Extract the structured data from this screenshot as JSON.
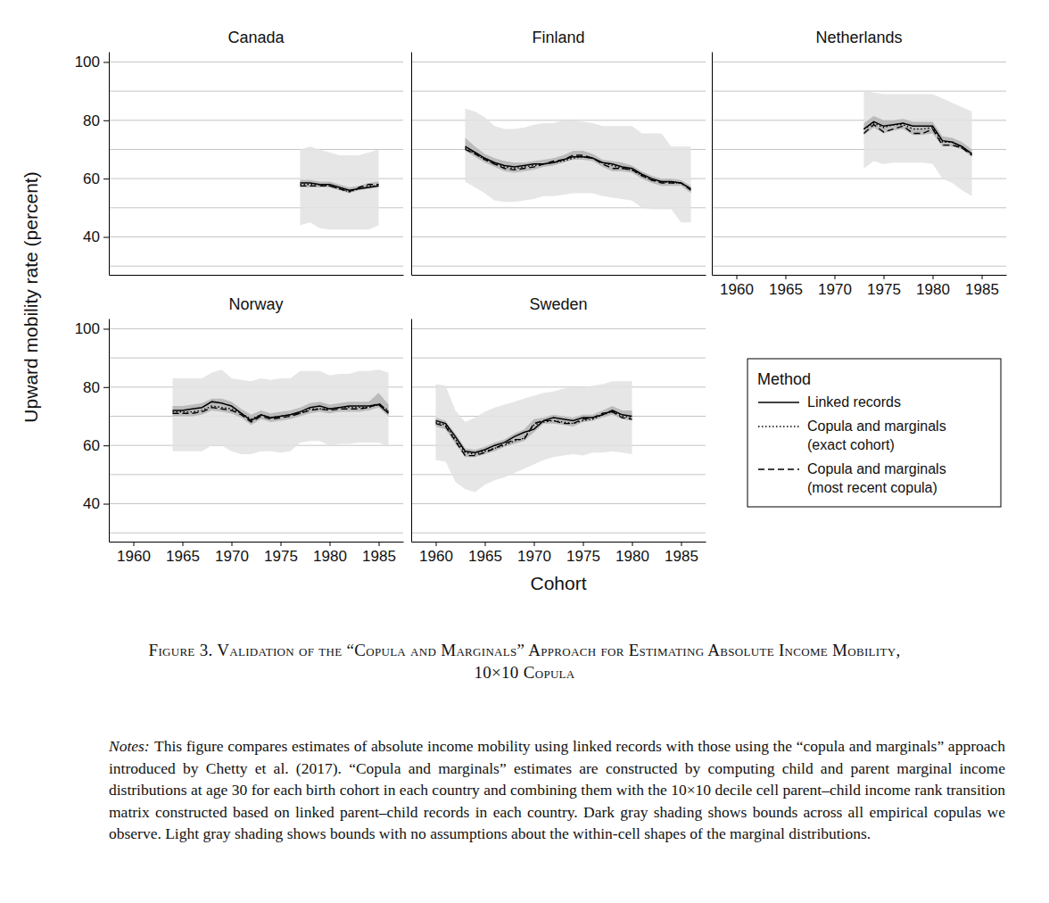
{
  "chart_data": [
    {
      "type": "line",
      "title": "Canada",
      "xlim": [
        1957.5,
        1987.5
      ],
      "ylim": [
        27,
        103.5
      ],
      "yticks": [
        40,
        60,
        80,
        100
      ],
      "minor_yticks": [
        30,
        50,
        70,
        90
      ],
      "xticks": [
        1960,
        1965,
        1970,
        1975,
        1980,
        1985
      ],
      "grid": true,
      "tick_labels": "y",
      "x": [
        1977,
        1978,
        1979,
        1980,
        1981,
        1982,
        1983,
        1984,
        1985
      ],
      "bands": [
        {
          "color": "#e2e2e2",
          "lower": [
            44,
            45,
            43,
            42.5,
            42.5,
            42.5,
            42.5,
            42.5,
            44
          ],
          "upper": [
            70,
            71,
            70,
            69,
            68,
            68,
            68,
            69,
            70
          ]
        },
        {
          "color": "#b3b3b3",
          "lower": [
            57,
            57,
            57,
            57,
            56,
            55,
            56,
            56.5,
            57
          ],
          "upper": [
            59.5,
            59.5,
            59,
            59,
            58,
            57,
            57.5,
            58.5,
            59
          ]
        }
      ],
      "series": [
        {
          "name": "Linked records",
          "color": "#000000",
          "line_style": "solid",
          "values": [
            58.5,
            58.5,
            58,
            58,
            57,
            56,
            56.5,
            57,
            57.5
          ]
        },
        {
          "name": "Copula and marginals (exact cohort)",
          "color": "#000000",
          "line_style": "dotted",
          "values": [
            58,
            58,
            58,
            57.5,
            56.5,
            55.5,
            56.5,
            57.5,
            57.5
          ]
        },
        {
          "name": "Copula and marginals (most recent copula)",
          "color": "#000000",
          "line_style": "dashed",
          "values": [
            57.5,
            57.5,
            57.5,
            57.5,
            56.5,
            55.5,
            57,
            58,
            58
          ]
        }
      ]
    },
    {
      "type": "line",
      "title": "Finland",
      "xlim": [
        1957.5,
        1987.5
      ],
      "ylim": [
        27,
        103.5
      ],
      "yticks": [
        40,
        60,
        80,
        100
      ],
      "minor_yticks": [
        30,
        50,
        70,
        90
      ],
      "xticks": [
        1960,
        1965,
        1970,
        1975,
        1980,
        1985
      ],
      "grid": true,
      "tick_labels": false,
      "x": [
        1963,
        1964,
        1965,
        1966,
        1967,
        1968,
        1969,
        1970,
        1971,
        1972,
        1973,
        1974,
        1975,
        1976,
        1977,
        1978,
        1979,
        1980,
        1981,
        1982,
        1983,
        1984,
        1985,
        1986
      ],
      "bands": [
        {
          "color": "#e2e2e2",
          "lower": [
            59,
            57,
            55,
            52.5,
            52,
            52,
            52.5,
            53,
            54,
            54,
            54.5,
            55,
            55,
            55,
            54,
            53.5,
            53,
            52.5,
            50,
            49.5,
            49.5,
            49.5,
            45,
            45
          ],
          "upper": [
            84,
            83,
            81,
            78,
            77,
            77,
            77.5,
            78.5,
            79,
            79,
            80,
            80,
            79.5,
            79,
            78,
            78,
            78,
            78,
            75.5,
            75.5,
            75.5,
            71,
            71,
            71
          ]
        },
        {
          "color": "#b3b3b3",
          "lower": [
            69.5,
            67.5,
            65.5,
            64,
            62.5,
            62,
            62.5,
            63,
            64,
            64.5,
            65.5,
            66.5,
            66.5,
            66,
            64,
            62.5,
            62.5,
            62,
            60,
            58.5,
            57.5,
            57.5,
            57.5,
            55
          ],
          "upper": [
            74,
            71,
            68.5,
            67,
            66,
            65.5,
            65.5,
            66,
            66.5,
            67,
            68,
            69.5,
            69.5,
            68.5,
            66.5,
            66,
            65.5,
            64.5,
            62.5,
            61,
            60,
            60,
            59.5,
            57.5
          ]
        }
      ],
      "series": [
        {
          "name": "Linked records",
          "color": "#000000",
          "line_style": "solid",
          "values": [
            71,
            69,
            67,
            65.5,
            64.5,
            64,
            64.5,
            65,
            65,
            65.5,
            66.5,
            67.5,
            67.5,
            67,
            65.5,
            65,
            64,
            63.5,
            61.5,
            60,
            59,
            59,
            58.5,
            56.5
          ]
        },
        {
          "name": "Copula and marginals (exact cohort)",
          "color": "#000000",
          "line_style": "dotted",
          "values": [
            70.5,
            68.5,
            66.5,
            65,
            64,
            63.5,
            64,
            64.5,
            65,
            65.5,
            66,
            67,
            67.5,
            67,
            65.5,
            64.5,
            63.5,
            63,
            61,
            59.5,
            59,
            58.5,
            58.5,
            56.5
          ]
        },
        {
          "name": "Copula and marginals (most recent copula)",
          "color": "#000000",
          "line_style": "dashed",
          "values": [
            70,
            68.5,
            66.5,
            65,
            63.5,
            63,
            63.5,
            64,
            65,
            66,
            66.5,
            68,
            68,
            67,
            65,
            63.5,
            63.5,
            63,
            61,
            59.5,
            58.5,
            58.5,
            58.5,
            56
          ]
        }
      ]
    },
    {
      "type": "line",
      "title": "Netherlands",
      "xlim": [
        1957.5,
        1987.5
      ],
      "ylim": [
        27,
        103.5
      ],
      "yticks": [
        40,
        60,
        80,
        100
      ],
      "minor_yticks": [
        30,
        50,
        70,
        90
      ],
      "xticks": [
        1960,
        1965,
        1970,
        1975,
        1980,
        1985
      ],
      "grid": true,
      "tick_labels": "x",
      "x": [
        1973,
        1974,
        1975,
        1976,
        1977,
        1978,
        1979,
        1980,
        1981,
        1982,
        1983,
        1984
      ],
      "bands": [
        {
          "color": "#e2e2e2",
          "lower": [
            63.5,
            66,
            65,
            65.5,
            65.5,
            65.5,
            65.5,
            65,
            60,
            58.5,
            56,
            54
          ],
          "upper": [
            90,
            89.5,
            89,
            89,
            89,
            89,
            89,
            89,
            87.5,
            86,
            84.5,
            83
          ]
        },
        {
          "color": "#b3b3b3",
          "lower": [
            75,
            77.5,
            75.5,
            76.5,
            77,
            75,
            75,
            75.5,
            71,
            71,
            70,
            67.5
          ],
          "upper": [
            79,
            81.5,
            80,
            80,
            80.5,
            79.5,
            79.5,
            79.5,
            74.5,
            74,
            72.5,
            70
          ]
        }
      ],
      "series": [
        {
          "name": "Linked records",
          "color": "#000000",
          "line_style": "solid",
          "values": [
            77,
            79.5,
            78,
            78.5,
            79,
            78,
            78,
            78,
            73,
            72.5,
            71,
            68.5
          ]
        },
        {
          "name": "Copula and marginals (exact cohort)",
          "color": "#000000",
          "line_style": "dotted",
          "values": [
            77,
            79,
            77.5,
            78.5,
            78.5,
            77,
            77,
            77.5,
            72.5,
            72.5,
            70.5,
            68.5
          ]
        },
        {
          "name": "Copula and marginals (most recent copula)",
          "color": "#000000",
          "line_style": "dashed",
          "values": [
            75.5,
            78.5,
            76,
            77,
            78,
            75.5,
            75.5,
            77,
            71.5,
            71.5,
            70.5,
            68
          ]
        }
      ]
    },
    {
      "type": "line",
      "title": "Norway",
      "xlim": [
        1957.5,
        1987.5
      ],
      "ylim": [
        27,
        103.5
      ],
      "yticks": [
        40,
        60,
        80,
        100
      ],
      "minor_yticks": [
        30,
        50,
        70,
        90
      ],
      "xticks": [
        1960,
        1965,
        1970,
        1975,
        1980,
        1985
      ],
      "grid": true,
      "tick_labels": true,
      "x": [
        1964,
        1965,
        1966,
        1967,
        1968,
        1969,
        1970,
        1971,
        1972,
        1973,
        1974,
        1975,
        1976,
        1977,
        1978,
        1979,
        1980,
        1981,
        1982,
        1983,
        1984,
        1985,
        1986
      ],
      "bands": [
        {
          "color": "#e2e2e2",
          "lower": [
            58,
            58,
            58,
            58,
            60,
            60,
            58,
            57,
            57,
            58,
            58,
            57.5,
            58,
            61,
            61.5,
            61.5,
            60,
            60.5,
            60.5,
            61,
            61,
            61,
            59.5
          ],
          "upper": [
            83,
            83,
            83,
            83,
            85,
            86,
            83,
            82.5,
            82,
            83,
            82.5,
            83,
            83,
            85.5,
            85.5,
            85.5,
            84,
            84.5,
            84.5,
            85.5,
            85.5,
            86,
            85
          ]
        },
        {
          "color": "#b3b3b3",
          "lower": [
            70,
            70,
            70,
            70.5,
            72,
            71.5,
            71,
            69.5,
            67,
            69,
            68,
            68.5,
            69,
            70,
            71,
            71.5,
            71,
            71.5,
            71.5,
            71.5,
            72,
            73,
            70
          ],
          "upper": [
            73.5,
            73.5,
            74,
            74.5,
            76,
            76,
            75,
            72.5,
            70.5,
            72,
            71,
            71.5,
            72,
            73,
            74.5,
            75,
            74,
            74.5,
            75,
            75,
            75,
            78,
            74
          ]
        }
      ],
      "series": [
        {
          "name": "Linked records",
          "color": "#000000",
          "line_style": "solid",
          "values": [
            72,
            72,
            72.5,
            73,
            75,
            74.5,
            73.5,
            71,
            68.5,
            70.5,
            69.5,
            70,
            70.5,
            71.5,
            73,
            73.5,
            72.5,
            73,
            73.5,
            73.5,
            73.5,
            74,
            71
          ]
        },
        {
          "name": "Copula and marginals (exact cohort)",
          "color": "#000000",
          "line_style": "dotted",
          "values": [
            71.5,
            71.5,
            71.5,
            72,
            73.5,
            73,
            72.5,
            71,
            69,
            70.5,
            69.5,
            70,
            70.5,
            71,
            72.5,
            72.5,
            72.5,
            73,
            73,
            73,
            73,
            74,
            72
          ]
        },
        {
          "name": "Copula and marginals (most recent copula)",
          "color": "#000000",
          "line_style": "dashed",
          "values": [
            71,
            71,
            71,
            71.5,
            73,
            72.5,
            72,
            70.5,
            68,
            70,
            69,
            69.5,
            70,
            71,
            72,
            72.5,
            72,
            72.5,
            72.5,
            72.5,
            73,
            74.5,
            71.5
          ]
        }
      ]
    },
    {
      "type": "line",
      "title": "Sweden",
      "xlim": [
        1957.5,
        1987.5
      ],
      "ylim": [
        27,
        103.5
      ],
      "yticks": [
        40,
        60,
        80,
        100
      ],
      "minor_yticks": [
        30,
        50,
        70,
        90
      ],
      "xticks": [
        1960,
        1965,
        1970,
        1975,
        1980,
        1985
      ],
      "grid": true,
      "tick_labels": "x",
      "x": [
        1960,
        1961,
        1962,
        1963,
        1964,
        1965,
        1966,
        1967,
        1968,
        1969,
        1970,
        1971,
        1972,
        1973,
        1974,
        1975,
        1976,
        1977,
        1978,
        1979,
        1980
      ],
      "bands": [
        {
          "color": "#e2e2e2",
          "lower": [
            55,
            54.5,
            47.5,
            45,
            44,
            46.5,
            48,
            49,
            50.5,
            52,
            53.5,
            55,
            56,
            56.5,
            57,
            56.5,
            57.5,
            57.5,
            58,
            57.5,
            57
          ],
          "upper": [
            81,
            80.5,
            72,
            68,
            69.5,
            71.5,
            73,
            74,
            75,
            76,
            77,
            78,
            78.5,
            79.5,
            80,
            80,
            80.5,
            81,
            82,
            82,
            82
          ]
        },
        {
          "color": "#b3b3b3",
          "lower": [
            66.5,
            65.5,
            60.5,
            56,
            56,
            57,
            58,
            59.5,
            60.5,
            61.5,
            64.5,
            67.5,
            67.5,
            67,
            66.5,
            68,
            68.5,
            69.5,
            70.5,
            69,
            68.5
          ],
          "upper": [
            69.5,
            68.5,
            64,
            59,
            58.5,
            59.5,
            61,
            62,
            64,
            65.5,
            69,
            69.5,
            70.5,
            70,
            69.5,
            70.5,
            70.5,
            72,
            73.5,
            72,
            72
          ]
        }
      ],
      "series": [
        {
          "name": "Linked records",
          "color": "#000000",
          "line_style": "solid",
          "values": [
            68.5,
            67.5,
            63,
            58,
            57.5,
            58.5,
            60,
            61,
            63,
            64.5,
            65.5,
            68.5,
            69.5,
            69,
            68.5,
            69.5,
            69.5,
            70.5,
            72,
            70.5,
            70
          ]
        },
        {
          "name": "Copula and marginals (exact cohort)",
          "color": "#000000",
          "line_style": "dotted",
          "values": [
            68,
            67,
            62,
            57.5,
            57,
            58,
            59,
            60,
            61.5,
            62.5,
            67,
            68,
            68.5,
            68,
            67.5,
            68.5,
            69,
            70.5,
            71.5,
            70,
            69.5
          ]
        },
        {
          "name": "Copula and marginals (most recent copula)",
          "color": "#000000",
          "line_style": "dashed",
          "values": [
            67.5,
            66.5,
            61.5,
            56.5,
            56.5,
            57.5,
            59,
            60.5,
            62,
            62,
            67.5,
            68.5,
            68.5,
            67.5,
            67.5,
            69,
            69.5,
            71,
            71.5,
            69.5,
            69
          ]
        }
      ]
    }
  ],
  "labels": {
    "y": "Upward mobility rate (percent)",
    "x": "Cohort",
    "legend_title": "Method",
    "caption": [
      "Figure 3. Validation of the “Copula and Marginals” Approach for Estimating Absolute Income Mobility,",
      "10×10 Copula"
    ],
    "notes_label": "Notes:",
    "notes": "This figure compares estimates of absolute income mobility using linked records with those using the “copula and marginals” approach introduced by Chetty et al. (2017). “Copula and marginals” estimates are constructed by computing child and parent marginal income distributions at age 30 for each birth cohort in each country and combining them with the 10×10 decile cell parent–child income rank transition matrix constructed based on linked parent–child records in each country. Dark gray shading shows bounds across all empirical copulas we observe. Light gray shading shows bounds with no assumptions about the within-cell shapes of the marginal distributions."
  }
}
